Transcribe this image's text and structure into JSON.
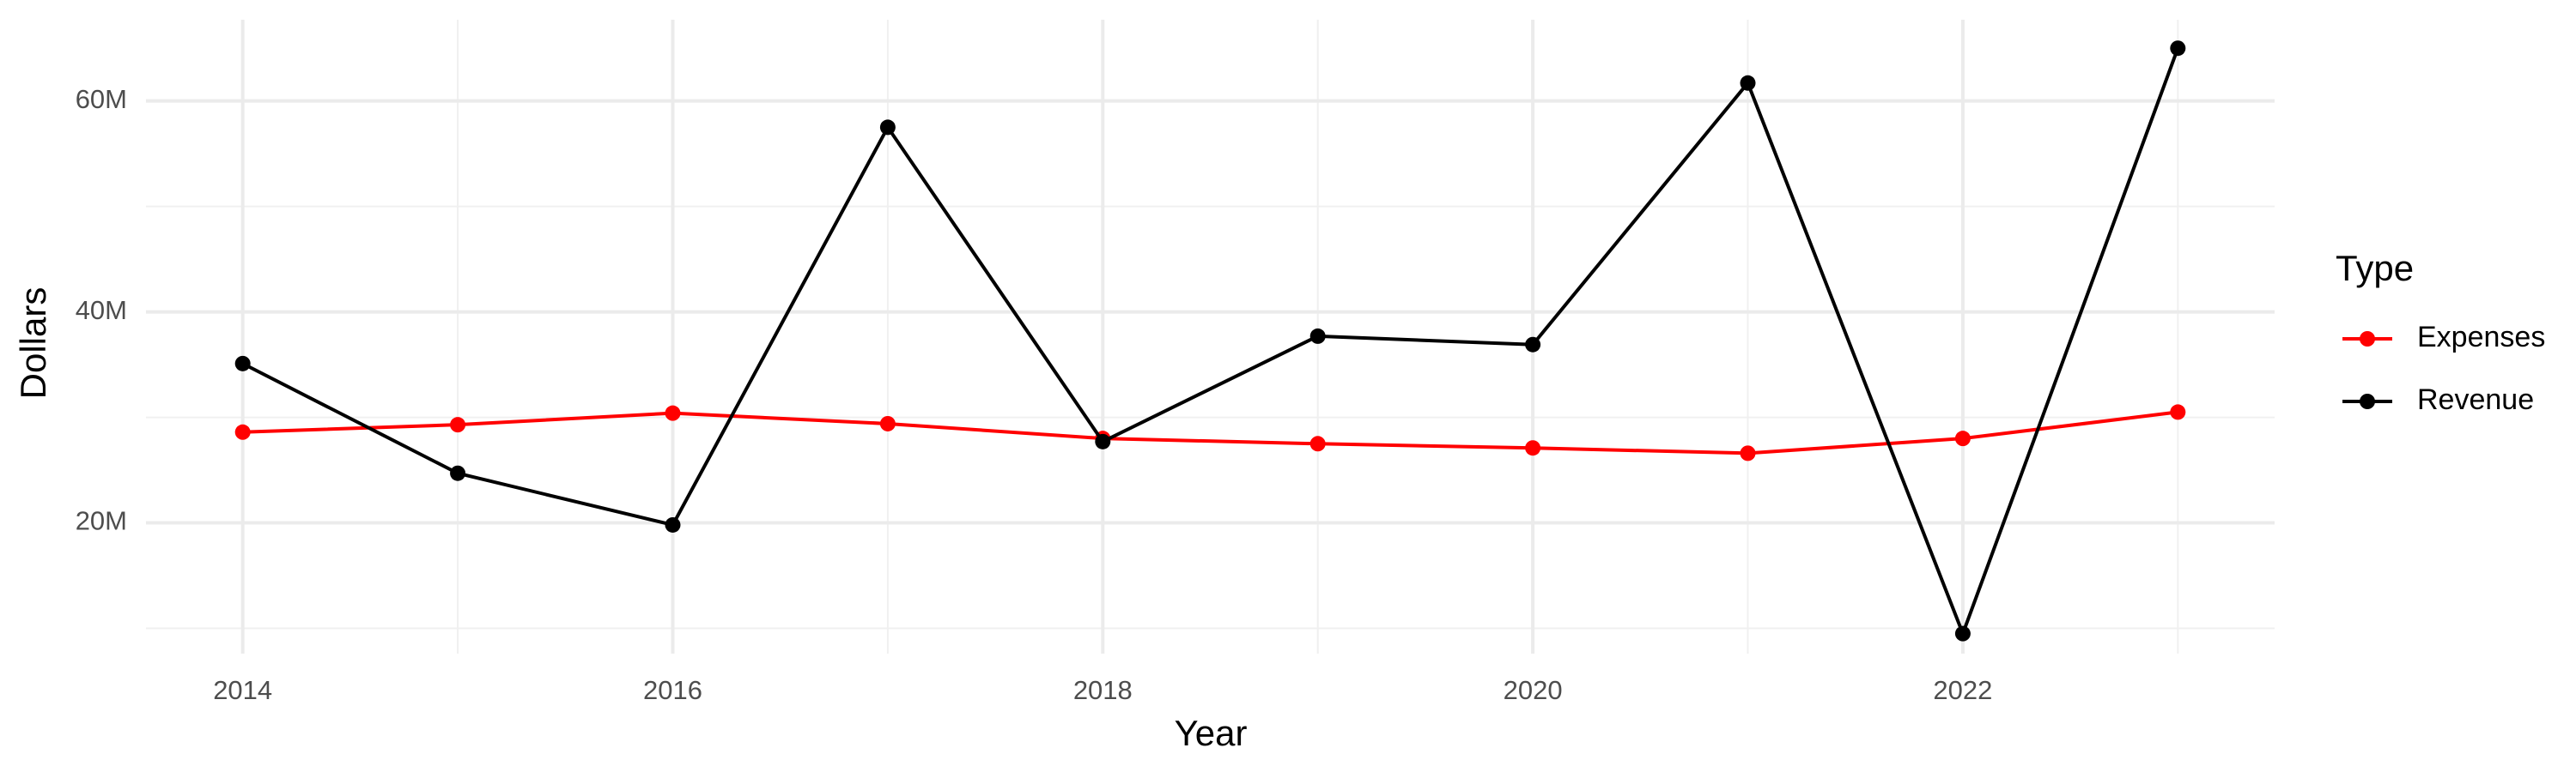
{
  "chart_data": {
    "type": "line",
    "x_label": "Year",
    "y_label": "Dollars",
    "legend_title": "Type",
    "x": [
      2014,
      2015,
      2016,
      2017,
      2018,
      2019,
      2020,
      2021,
      2022,
      2023
    ],
    "series": [
      {
        "name": "Expenses",
        "color": "#ff0000",
        "values": [
          28600000,
          29300000,
          30400000,
          29400000,
          28000000,
          27500000,
          27100000,
          26600000,
          28000000,
          30500000
        ]
      },
      {
        "name": "Revenue",
        "color": "#000000",
        "values": [
          35100000,
          24700000,
          19800000,
          57500000,
          27700000,
          37700000,
          36900000,
          61700000,
          9500000,
          65000000
        ]
      }
    ],
    "xlim": [
      2013.55,
      2023.45
    ],
    "xticks": [
      2014,
      2016,
      2018,
      2020,
      2022
    ],
    "x_minor_ticks": [
      2015,
      2017,
      2019,
      2021,
      2023
    ],
    "ylim": [
      7600000,
      67700000
    ],
    "yticks": [
      {
        "value": 20000000,
        "label": "20M"
      },
      {
        "value": 40000000,
        "label": "40M"
      },
      {
        "value": 60000000,
        "label": "60M"
      }
    ],
    "y_minor_ticks": [
      10000000,
      30000000,
      50000000
    ],
    "grid": true,
    "legend_position": "right"
  }
}
